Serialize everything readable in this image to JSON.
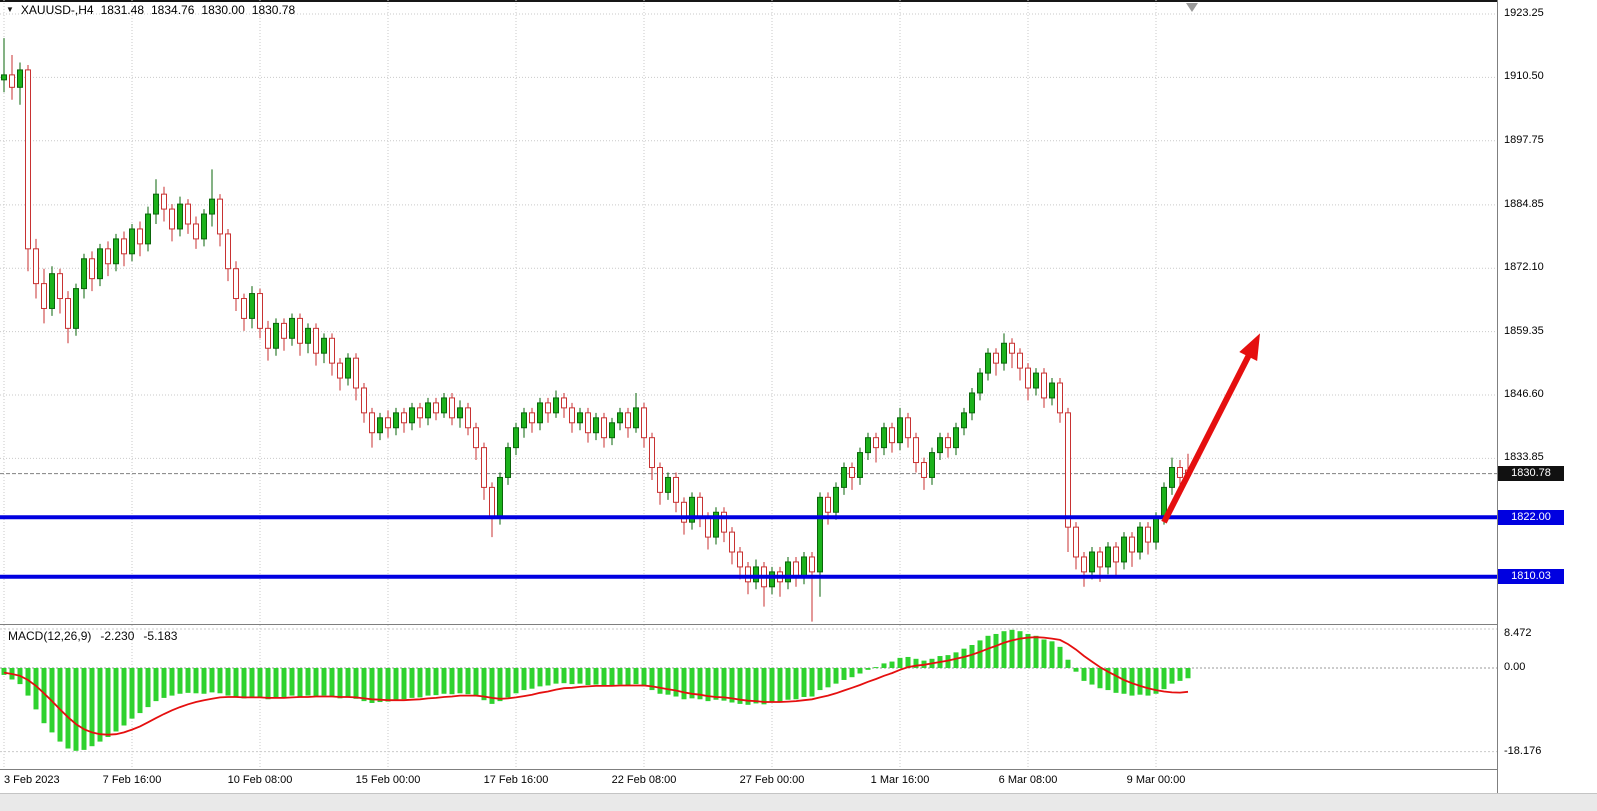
{
  "icons": {
    "symbol_dropdown": "▼"
  },
  "header": {
    "symbol": "XAUUSD-,H4",
    "open": "1831.48",
    "high": "1834.76",
    "low": "1830.00",
    "close": "1830.78"
  },
  "levels": {
    "current": "1830.78",
    "resistance": "1822.00",
    "support": "1810.03"
  },
  "macd_info": {
    "label": "MACD(12,26,9)",
    "macd": "-2.230",
    "signal": "-5.183"
  },
  "colors": {
    "background": "#ffffff",
    "bull_fill": "#1cb21c",
    "bull_stroke": "#0a650a",
    "bear_stroke": "#c83232",
    "bear_fill": "#ffffff",
    "grid": "#c9c9c9",
    "level_line": "#0000e0",
    "badge_current_bg": "#111111",
    "badge_level_bg": "#0000e0",
    "badge_text": "#ffffff",
    "arrow": "#e50f0f",
    "macd_hist": "#2ed22e",
    "macd_signal": "#e50f0f",
    "axis_text": "#000000",
    "current_price_line": "#808080",
    "scroll_marker": "#9a9a9a"
  },
  "chart_data": {
    "type": "candlestick",
    "title": "XAUUSD- H4 price chart with MACD(12,26,9), horizontal levels 1822.00 / 1810.03 and red up-trend arrow",
    "symbol": "XAUUSD-",
    "timeframe": "H4",
    "last_ohlc": {
      "open": 1831.48,
      "high": 1834.76,
      "low": 1830.0,
      "close": 1830.78
    },
    "current_price": 1830.78,
    "y_axis_ticks": [
      1923.25,
      1910.5,
      1897.75,
      1884.85,
      1872.1,
      1859.35,
      1846.6,
      1833.85
    ],
    "x_axis": {
      "labels": [
        "3 Feb 2023",
        "7 Feb 16:00",
        "10 Feb 08:00",
        "15 Feb 00:00",
        "17 Feb 16:00",
        "22 Feb 08:00",
        "27 Feb 00:00",
        "1 Mar 16:00",
        "6 Mar 08:00",
        "9 Mar 00:00"
      ],
      "bar_indices": [
        0,
        16,
        32,
        48,
        64,
        80,
        96,
        112,
        128,
        144
      ]
    },
    "horizontal_levels": [
      {
        "price": 1822.0,
        "label": "1822.00"
      },
      {
        "price": 1810.03,
        "label": "1810.03"
      }
    ],
    "trend_arrow": {
      "from_bar": 145,
      "from_price": 1821.0,
      "to_bar": 157,
      "to_price": 1859.0
    },
    "candles": [
      [
        1910.0,
        1918.4,
        1907.5,
        1911.0
      ],
      [
        1911.0,
        1915.0,
        1906.0,
        1908.5
      ],
      [
        1908.5,
        1913.5,
        1905.0,
        1912.0
      ],
      [
        1912.0,
        1913.0,
        1871.5,
        1876.0
      ],
      [
        1876.0,
        1878.0,
        1866.0,
        1869.0
      ],
      [
        1869.0,
        1872.0,
        1861.0,
        1864.0
      ],
      [
        1864.0,
        1872.5,
        1862.5,
        1871.0
      ],
      [
        1871.0,
        1872.0,
        1863.0,
        1866.0
      ],
      [
        1866.0,
        1867.5,
        1857.0,
        1860.0
      ],
      [
        1860.0,
        1869.0,
        1858.5,
        1868.0
      ],
      [
        1868.0,
        1875.0,
        1866.0,
        1874.0
      ],
      [
        1874.0,
        1875.5,
        1867.5,
        1870.0
      ],
      [
        1870.0,
        1877.0,
        1868.5,
        1876.0
      ],
      [
        1876.0,
        1877.5,
        1870.5,
        1873.0
      ],
      [
        1873.0,
        1879.0,
        1871.5,
        1878.0
      ],
      [
        1878.0,
        1879.5,
        1872.5,
        1875.0
      ],
      [
        1875.0,
        1881.0,
        1873.5,
        1880.0
      ],
      [
        1880.0,
        1881.5,
        1874.5,
        1877.0
      ],
      [
        1877.0,
        1884.5,
        1875.5,
        1883.0
      ],
      [
        1883.0,
        1890.0,
        1881.0,
        1887.0
      ],
      [
        1887.0,
        1888.5,
        1881.5,
        1884.0
      ],
      [
        1884.0,
        1885.0,
        1877.5,
        1880.0
      ],
      [
        1880.0,
        1886.5,
        1878.5,
        1885.0
      ],
      [
        1885.0,
        1886.0,
        1879.0,
        1881.0
      ],
      [
        1881.0,
        1882.5,
        1876.0,
        1878.0
      ],
      [
        1878.0,
        1884.0,
        1876.5,
        1883.0
      ],
      [
        1883.0,
        1892.0,
        1880.5,
        1886.0
      ],
      [
        1886.0,
        1887.0,
        1876.5,
        1879.0
      ],
      [
        1879.0,
        1880.0,
        1869.5,
        1872.0
      ],
      [
        1872.0,
        1873.5,
        1863.5,
        1866.0
      ],
      [
        1866.0,
        1867.0,
        1859.5,
        1862.0
      ],
      [
        1862.0,
        1868.5,
        1860.0,
        1867.0
      ],
      [
        1867.0,
        1868.0,
        1858.0,
        1860.0
      ],
      [
        1860.0,
        1861.5,
        1853.5,
        1856.0
      ],
      [
        1856.0,
        1862.0,
        1854.5,
        1861.0
      ],
      [
        1861.0,
        1862.0,
        1855.5,
        1858.0
      ],
      [
        1858.0,
        1863.0,
        1856.5,
        1862.0
      ],
      [
        1862.0,
        1863.0,
        1854.5,
        1857.0
      ],
      [
        1857.0,
        1861.0,
        1855.0,
        1860.0
      ],
      [
        1860.0,
        1861.0,
        1852.5,
        1855.0
      ],
      [
        1855.0,
        1859.0,
        1853.0,
        1858.0
      ],
      [
        1858.0,
        1859.0,
        1850.5,
        1853.0
      ],
      [
        1853.0,
        1854.0,
        1847.5,
        1850.0
      ],
      [
        1850.0,
        1855.0,
        1848.5,
        1854.0
      ],
      [
        1854.0,
        1855.0,
        1845.5,
        1848.0
      ],
      [
        1848.0,
        1849.0,
        1841.0,
        1843.0
      ],
      [
        1843.0,
        1844.0,
        1836.0,
        1839.0
      ],
      [
        1839.0,
        1843.0,
        1837.5,
        1842.0
      ],
      [
        1842.0,
        1843.5,
        1838.0,
        1840.0
      ],
      [
        1840.0,
        1844.0,
        1838.5,
        1843.0
      ],
      [
        1843.0,
        1844.0,
        1839.0,
        1841.0
      ],
      [
        1841.0,
        1845.0,
        1839.5,
        1844.0
      ],
      [
        1844.0,
        1845.0,
        1840.0,
        1842.0
      ],
      [
        1842.0,
        1846.0,
        1840.5,
        1845.0
      ],
      [
        1845.0,
        1846.0,
        1841.5,
        1843.0
      ],
      [
        1843.0,
        1847.0,
        1842.0,
        1846.0
      ],
      [
        1846.0,
        1847.0,
        1840.5,
        1842.0
      ],
      [
        1842.0,
        1845.5,
        1840.0,
        1844.0
      ],
      [
        1844.0,
        1845.0,
        1838.5,
        1840.0
      ],
      [
        1840.0,
        1841.0,
        1833.5,
        1836.0
      ],
      [
        1836.0,
        1837.0,
        1825.5,
        1828.0
      ],
      [
        1828.0,
        1829.0,
        1818.0,
        1822.0
      ],
      [
        1822.0,
        1831.0,
        1820.5,
        1830.0
      ],
      [
        1830.0,
        1837.0,
        1828.5,
        1836.0
      ],
      [
        1836.0,
        1841.0,
        1834.5,
        1840.0
      ],
      [
        1840.0,
        1844.0,
        1838.0,
        1843.0
      ],
      [
        1843.0,
        1844.0,
        1839.0,
        1841.0
      ],
      [
        1841.0,
        1846.0,
        1839.5,
        1845.0
      ],
      [
        1845.0,
        1846.0,
        1841.0,
        1843.0
      ],
      [
        1843.0,
        1847.5,
        1842.0,
        1846.0
      ],
      [
        1846.0,
        1847.0,
        1842.0,
        1844.0
      ],
      [
        1844.0,
        1845.0,
        1839.0,
        1841.0
      ],
      [
        1841.0,
        1844.0,
        1839.5,
        1843.0
      ],
      [
        1843.0,
        1844.0,
        1837.0,
        1839.0
      ],
      [
        1839.0,
        1843.0,
        1837.5,
        1842.0
      ],
      [
        1842.0,
        1843.0,
        1836.0,
        1838.0
      ],
      [
        1838.0,
        1842.0,
        1836.5,
        1841.0
      ],
      [
        1841.0,
        1844.0,
        1839.5,
        1843.0
      ],
      [
        1843.0,
        1844.0,
        1838.0,
        1840.0
      ],
      [
        1840.0,
        1847.0,
        1839.0,
        1844.0
      ],
      [
        1844.0,
        1845.0,
        1836.0,
        1838.0
      ],
      [
        1838.0,
        1839.0,
        1829.5,
        1832.0
      ],
      [
        1832.0,
        1833.0,
        1824.5,
        1827.0
      ],
      [
        1827.0,
        1831.0,
        1825.5,
        1830.0
      ],
      [
        1830.0,
        1831.0,
        1823.0,
        1825.0
      ],
      [
        1825.0,
        1826.0,
        1818.5,
        1821.0
      ],
      [
        1821.0,
        1827.0,
        1819.5,
        1826.0
      ],
      [
        1826.0,
        1827.0,
        1820.0,
        1822.0
      ],
      [
        1822.0,
        1823.0,
        1815.5,
        1818.0
      ],
      [
        1818.0,
        1824.0,
        1816.5,
        1823.0
      ],
      [
        1823.0,
        1824.0,
        1817.0,
        1819.0
      ],
      [
        1819.0,
        1820.0,
        1812.5,
        1815.0
      ],
      [
        1815.0,
        1816.0,
        1809.5,
        1812.0
      ],
      [
        1812.0,
        1813.0,
        1806.5,
        1809.0
      ],
      [
        1809.0,
        1813.5,
        1807.5,
        1812.0
      ],
      [
        1812.0,
        1813.0,
        1804.0,
        1808.0
      ],
      [
        1808.0,
        1812.0,
        1806.5,
        1811.0
      ],
      [
        1811.0,
        1812.0,
        1806.0,
        1809.0
      ],
      [
        1809.0,
        1814.0,
        1807.5,
        1813.0
      ],
      [
        1813.0,
        1814.0,
        1808.0,
        1810.0
      ],
      [
        1810.0,
        1815.0,
        1808.5,
        1814.0
      ],
      [
        1814.0,
        1815.0,
        1801.0,
        1811.0
      ],
      [
        1811.0,
        1827.0,
        1806.0,
        1826.0
      ],
      [
        1826.0,
        1827.0,
        1820.5,
        1823.0
      ],
      [
        1823.0,
        1829.0,
        1821.5,
        1828.0
      ],
      [
        1828.0,
        1833.0,
        1826.5,
        1832.0
      ],
      [
        1832.0,
        1833.0,
        1827.5,
        1830.0
      ],
      [
        1830.0,
        1836.0,
        1828.5,
        1835.0
      ],
      [
        1835.0,
        1839.0,
        1833.5,
        1838.0
      ],
      [
        1838.0,
        1839.0,
        1833.0,
        1836.0
      ],
      [
        1836.0,
        1841.0,
        1834.5,
        1840.0
      ],
      [
        1840.0,
        1841.0,
        1835.0,
        1837.0
      ],
      [
        1837.0,
        1844.0,
        1835.5,
        1842.0
      ],
      [
        1842.0,
        1843.0,
        1836.0,
        1838.0
      ],
      [
        1838.0,
        1839.0,
        1831.0,
        1833.0
      ],
      [
        1833.0,
        1834.0,
        1827.5,
        1830.0
      ],
      [
        1830.0,
        1836.0,
        1828.5,
        1835.0
      ],
      [
        1835.0,
        1839.0,
        1833.5,
        1838.0
      ],
      [
        1838.0,
        1839.0,
        1834.0,
        1836.0
      ],
      [
        1836.0,
        1841.0,
        1834.5,
        1840.0
      ],
      [
        1840.0,
        1844.0,
        1838.5,
        1843.0
      ],
      [
        1843.0,
        1848.0,
        1841.5,
        1847.0
      ],
      [
        1847.0,
        1852.0,
        1845.5,
        1851.0
      ],
      [
        1851.0,
        1856.0,
        1849.5,
        1855.0
      ],
      [
        1855.0,
        1856.0,
        1850.5,
        1853.0
      ],
      [
        1853.0,
        1859.0,
        1851.5,
        1857.0
      ],
      [
        1857.0,
        1858.0,
        1852.0,
        1855.0
      ],
      [
        1855.0,
        1856.0,
        1849.5,
        1852.0
      ],
      [
        1852.0,
        1853.0,
        1845.5,
        1848.0
      ],
      [
        1848.0,
        1852.0,
        1846.5,
        1851.0
      ],
      [
        1851.0,
        1852.0,
        1844.0,
        1846.0
      ],
      [
        1846.0,
        1850.0,
        1844.5,
        1849.0
      ],
      [
        1849.0,
        1850.0,
        1841.0,
        1843.0
      ],
      [
        1843.0,
        1844.0,
        1815.0,
        1820.0
      ],
      [
        1820.0,
        1821.0,
        1811.5,
        1814.0
      ],
      [
        1814.0,
        1815.0,
        1808.0,
        1811.0
      ],
      [
        1811.0,
        1816.0,
        1809.5,
        1815.0
      ],
      [
        1815.0,
        1816.0,
        1809.0,
        1812.0
      ],
      [
        1812.0,
        1817.0,
        1810.5,
        1816.0
      ],
      [
        1816.0,
        1817.0,
        1810.0,
        1813.0
      ],
      [
        1813.0,
        1819.0,
        1811.5,
        1818.0
      ],
      [
        1818.0,
        1819.0,
        1812.0,
        1815.0
      ],
      [
        1815.0,
        1821.0,
        1813.5,
        1820.0
      ],
      [
        1820.0,
        1821.0,
        1814.5,
        1817.0
      ],
      [
        1817.0,
        1823.0,
        1815.5,
        1822.0
      ],
      [
        1822.0,
        1829.0,
        1820.5,
        1828.0
      ],
      [
        1828.0,
        1834.0,
        1826.5,
        1832.0
      ],
      [
        1832.0,
        1833.5,
        1828.0,
        1830.0
      ],
      [
        1831.48,
        1834.76,
        1830.0,
        1830.78
      ]
    ],
    "macd": {
      "name": "MACD(12,26,9)",
      "macd_last": -2.23,
      "signal_last": -5.183,
      "y_ticks": [
        8.472,
        0.0,
        -18.176
      ],
      "histogram": [
        -1.5,
        -2.5,
        -3.5,
        -6,
        -9,
        -12,
        -14,
        -16,
        -17.5,
        -18,
        -17.8,
        -17,
        -16,
        -15,
        -13.8,
        -12.5,
        -11,
        -9.8,
        -8.5,
        -7.2,
        -6.5,
        -6,
        -5.6,
        -5.4,
        -5.5,
        -5.6,
        -5.3,
        -5.5,
        -6,
        -6.4,
        -6.6,
        -6.3,
        -6.5,
        -6.8,
        -6.5,
        -6.3,
        -6,
        -6.2,
        -6,
        -6.2,
        -6,
        -6.3,
        -6.6,
        -6.4,
        -6.7,
        -7.2,
        -7.6,
        -7.4,
        -7.3,
        -7,
        -6.8,
        -6.5,
        -6.4,
        -6,
        -5.9,
        -5.6,
        -5.7,
        -5.5,
        -5.7,
        -6.2,
        -7,
        -7.8,
        -7.2,
        -6.4,
        -5.5,
        -4.8,
        -4.5,
        -4,
        -3.8,
        -3.4,
        -3.3,
        -3.5,
        -3.4,
        -3.7,
        -3.6,
        -3.9,
        -3.8,
        -3.6,
        -3.8,
        -3.5,
        -4,
        -4.8,
        -5.6,
        -5.8,
        -6.2,
        -6.8,
        -6.6,
        -6.8,
        -7.2,
        -6.9,
        -7.1,
        -7.5,
        -7.8,
        -8,
        -7.7,
        -7.9,
        -7.5,
        -7.4,
        -6.9,
        -6.8,
        -6.3,
        -6.2,
        -4.8,
        -4.2,
        -3.4,
        -2.6,
        -2,
        -1.2,
        -0.4,
        0.2,
        1,
        1.4,
        2.2,
        2.4,
        2,
        1.6,
        2,
        2.6,
        2.8,
        3.4,
        4.2,
        5,
        6,
        7,
        7.4,
        8,
        8.3,
        8,
        7.4,
        7,
        6.2,
        5.8,
        4.6,
        1.8,
        -0.8,
        -2.8,
        -3.6,
        -4.4,
        -4.8,
        -5.4,
        -5.6,
        -6,
        -5.8,
        -6,
        -5.6,
        -4.6,
        -3.4,
        -2.8,
        -2.23
      ],
      "signal": [
        -1,
        -1.3,
        -1.7,
        -2.6,
        -3.9,
        -5.5,
        -7.2,
        -9,
        -10.7,
        -12.2,
        -13.3,
        -14,
        -14.4,
        -14.5,
        -14.4,
        -14,
        -13.4,
        -12.7,
        -11.8,
        -10.9,
        -10,
        -9.2,
        -8.5,
        -7.9,
        -7.4,
        -7,
        -6.7,
        -6.4,
        -6.3,
        -6.3,
        -6.4,
        -6.4,
        -6.4,
        -6.5,
        -6.5,
        -6.5,
        -6.4,
        -6.3,
        -6.3,
        -6.2,
        -6.2,
        -6.2,
        -6.3,
        -6.3,
        -6.4,
        -6.6,
        -6.8,
        -6.9,
        -7,
        -7,
        -7,
        -6.9,
        -6.8,
        -6.6,
        -6.5,
        -6.3,
        -6.2,
        -6,
        -6,
        -6,
        -6.2,
        -6.5,
        -6.7,
        -6.6,
        -6.4,
        -6.1,
        -5.8,
        -5.4,
        -5.1,
        -4.7,
        -4.4,
        -4.3,
        -4.1,
        -4,
        -3.9,
        -3.9,
        -3.9,
        -3.8,
        -3.8,
        -3.8,
        -3.8,
        -4,
        -4.3,
        -4.6,
        -4.9,
        -5.3,
        -5.6,
        -5.8,
        -6.1,
        -6.3,
        -6.4,
        -6.6,
        -6.9,
        -7.1,
        -7.2,
        -7.4,
        -7.4,
        -7.4,
        -7.3,
        -7.2,
        -7,
        -6.8,
        -6.4,
        -6,
        -5.5,
        -4.9,
        -4.3,
        -3.7,
        -3,
        -2.4,
        -1.7,
        -1.1,
        -0.4,
        0.2,
        0.5,
        0.7,
        1,
        1.3,
        1.6,
        2,
        2.4,
        2.9,
        3.5,
        4.2,
        4.8,
        5.5,
        6,
        6.4,
        6.6,
        6.7,
        6.6,
        6.4,
        6.1,
        5.2,
        4,
        2.6,
        1.4,
        0.2,
        -0.8,
        -1.7,
        -2.6,
        -3.3,
        -3.9,
        -4.4,
        -4.8,
        -5.1,
        -5.3,
        -5.35,
        -5.183
      ]
    }
  }
}
